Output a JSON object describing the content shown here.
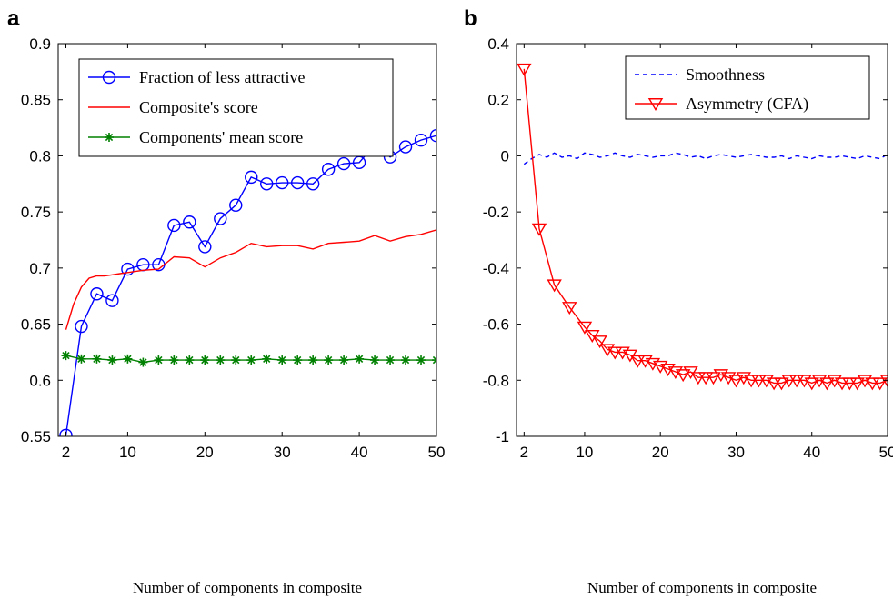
{
  "panels": {
    "a": {
      "label": "a"
    },
    "b": {
      "label": "b"
    }
  },
  "chart_data": [
    {
      "panel": "a",
      "type": "line",
      "xlabel": "Number of components in composite",
      "ylabel": "",
      "xlim": [
        1,
        50
      ],
      "ylim": [
        0.55,
        0.9
      ],
      "xticks": [
        2,
        10,
        20,
        30,
        40,
        50
      ],
      "yticks": [
        0.55,
        0.6,
        0.65,
        0.7,
        0.75,
        0.8,
        0.85,
        0.9
      ],
      "ytick_labels": [
        "0.55",
        "0.6",
        "0.65",
        "0.7",
        "0.75",
        "0.8",
        "0.85",
        "0.9"
      ],
      "legend_position": "top",
      "series": [
        {
          "name": "Fraction of less attractive",
          "color": "#0000ff",
          "marker": "circle",
          "x": [
            2,
            4,
            6,
            8,
            10,
            12,
            14,
            16,
            18,
            20,
            22,
            24,
            26,
            28,
            30,
            32,
            34,
            36,
            38,
            40,
            42,
            44,
            46,
            48,
            50
          ],
          "values": [
            0.551,
            0.648,
            0.677,
            0.671,
            0.699,
            0.703,
            0.703,
            0.738,
            0.741,
            0.719,
            0.744,
            0.756,
            0.781,
            0.775,
            0.776,
            0.776,
            0.775,
            0.788,
            0.793,
            0.794,
            0.81,
            0.799,
            0.808,
            0.814,
            0.818
          ]
        },
        {
          "name": "Composite's score",
          "color": "#ff0000",
          "marker": "none",
          "x": [
            2,
            3,
            4,
            5,
            6,
            7,
            8,
            9,
            10,
            12,
            14,
            16,
            18,
            20,
            22,
            24,
            26,
            28,
            30,
            32,
            34,
            36,
            38,
            40,
            42,
            44,
            46,
            48,
            50
          ],
          "values": [
            0.645,
            0.668,
            0.683,
            0.691,
            0.693,
            0.693,
            0.694,
            0.695,
            0.696,
            0.698,
            0.699,
            0.71,
            0.709,
            0.701,
            0.709,
            0.714,
            0.722,
            0.719,
            0.72,
            0.72,
            0.717,
            0.722,
            0.723,
            0.724,
            0.729,
            0.724,
            0.728,
            0.73,
            0.734
          ]
        },
        {
          "name": "Components' mean score",
          "color": "#008000",
          "marker": "star",
          "x": [
            2,
            4,
            6,
            8,
            10,
            12,
            14,
            16,
            18,
            20,
            22,
            24,
            26,
            28,
            30,
            32,
            34,
            36,
            38,
            40,
            42,
            44,
            46,
            48,
            50
          ],
          "values": [
            0.622,
            0.619,
            0.619,
            0.618,
            0.619,
            0.616,
            0.618,
            0.618,
            0.618,
            0.618,
            0.618,
            0.618,
            0.618,
            0.619,
            0.618,
            0.618,
            0.618,
            0.618,
            0.618,
            0.619,
            0.618,
            0.618,
            0.618,
            0.618,
            0.618
          ]
        }
      ]
    },
    {
      "panel": "b",
      "type": "line",
      "xlabel": "Number of components in composite",
      "ylabel": "",
      "xlim": [
        1,
        50
      ],
      "ylim": [
        -1,
        0.4
      ],
      "xticks": [
        2,
        10,
        20,
        30,
        40,
        50
      ],
      "yticks": [
        -1,
        -0.8,
        -0.6,
        -0.4,
        -0.2,
        0,
        0.2,
        0.4
      ],
      "ytick_labels": [
        "-1",
        "-0.8",
        "-0.6",
        "-0.4",
        "-0.2",
        "0",
        "0.2",
        "0.4"
      ],
      "legend_position": "top-right",
      "series": [
        {
          "name": "Smoothness",
          "color": "#0000ff",
          "marker": "none",
          "dashed": true,
          "x": [
            2,
            3,
            4,
            5,
            6,
            7,
            8,
            9,
            10,
            11,
            12,
            13,
            14,
            15,
            16,
            17,
            18,
            19,
            20,
            21,
            22,
            23,
            24,
            25,
            26,
            27,
            28,
            29,
            30,
            31,
            32,
            33,
            34,
            35,
            36,
            37,
            38,
            39,
            40,
            41,
            42,
            43,
            44,
            45,
            46,
            47,
            48,
            49,
            50
          ],
          "values": [
            -0.03,
            -0.01,
            0.005,
            -0.005,
            0.01,
            -0.005,
            0.0,
            -0.01,
            0.01,
            0.005,
            -0.005,
            0.0,
            0.01,
            0.0,
            -0.005,
            0.005,
            0.0,
            -0.005,
            0.0,
            0.0,
            0.01,
            0.005,
            -0.005,
            0.0,
            -0.01,
            0.0,
            0.005,
            0.0,
            -0.005,
            0.0,
            0.005,
            0.0,
            -0.005,
            -0.005,
            0.0,
            -0.01,
            0.0,
            -0.005,
            -0.01,
            0.0,
            -0.005,
            -0.005,
            0.0,
            -0.005,
            -0.01,
            0.0,
            -0.005,
            -0.01,
            0.005
          ]
        },
        {
          "name": "Asymmetry (CFA)",
          "color": "#ff0000",
          "marker": "triangle-down",
          "x": [
            2,
            4,
            6,
            8,
            10,
            11,
            12,
            13,
            14,
            15,
            16,
            17,
            18,
            19,
            20,
            21,
            22,
            23,
            24,
            25,
            26,
            27,
            28,
            29,
            30,
            31,
            32,
            33,
            34,
            35,
            36,
            37,
            38,
            39,
            40,
            41,
            42,
            43,
            44,
            45,
            46,
            47,
            48,
            49,
            50
          ],
          "values": [
            0.31,
            -0.26,
            -0.46,
            -0.54,
            -0.61,
            -0.64,
            -0.66,
            -0.69,
            -0.7,
            -0.7,
            -0.71,
            -0.73,
            -0.73,
            -0.74,
            -0.75,
            -0.76,
            -0.77,
            -0.78,
            -0.77,
            -0.79,
            -0.79,
            -0.79,
            -0.78,
            -0.79,
            -0.8,
            -0.79,
            -0.8,
            -0.8,
            -0.8,
            -0.81,
            -0.81,
            -0.8,
            -0.8,
            -0.8,
            -0.81,
            -0.8,
            -0.81,
            -0.8,
            -0.81,
            -0.81,
            -0.81,
            -0.8,
            -0.81,
            -0.81,
            -0.8
          ]
        }
      ]
    }
  ]
}
